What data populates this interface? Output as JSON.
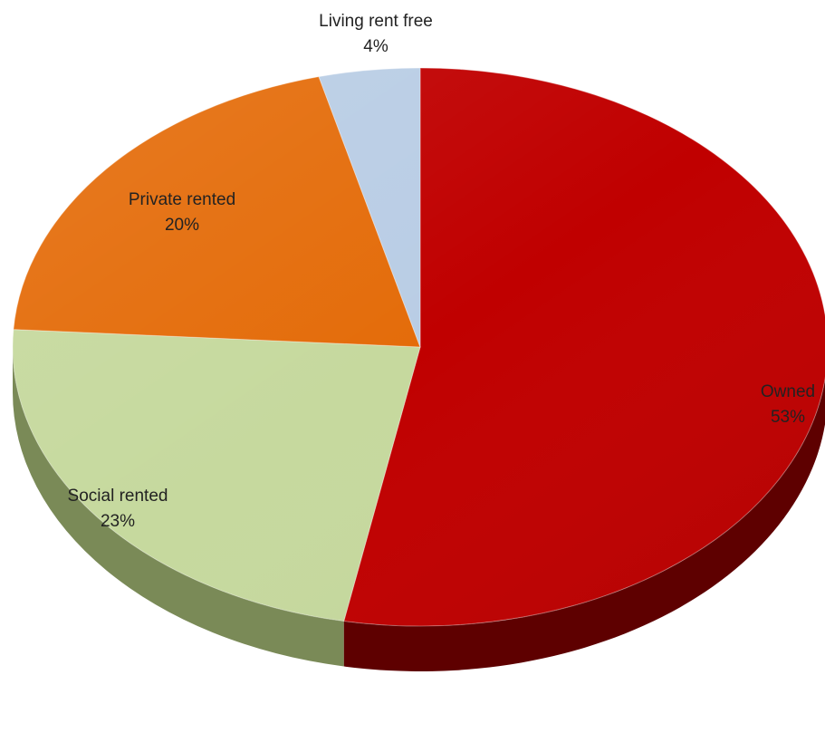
{
  "chart_data": {
    "type": "pie",
    "title": "",
    "slices": [
      {
        "label": "Owned",
        "value": 53,
        "value_label": "53%",
        "color": "#C00000"
      },
      {
        "label": "Social rented",
        "value": 23,
        "value_label": "23%",
        "color": "#C6D99E"
      },
      {
        "label": "Private rented",
        "value": 20,
        "value_label": "20%",
        "color": "#E46C0A"
      },
      {
        "label": "Living rent free",
        "value": 4,
        "value_label": "4%",
        "color": "#B9CDE5"
      }
    ],
    "side_colors": {
      "Owned": "#5E0000",
      "Social rented": "#7A8A57",
      "Private rented": "#8A3F05",
      "Living rent free": "#7F90A5"
    },
    "style": "3d-tilted",
    "legend": "none",
    "data_labels": "inside"
  }
}
